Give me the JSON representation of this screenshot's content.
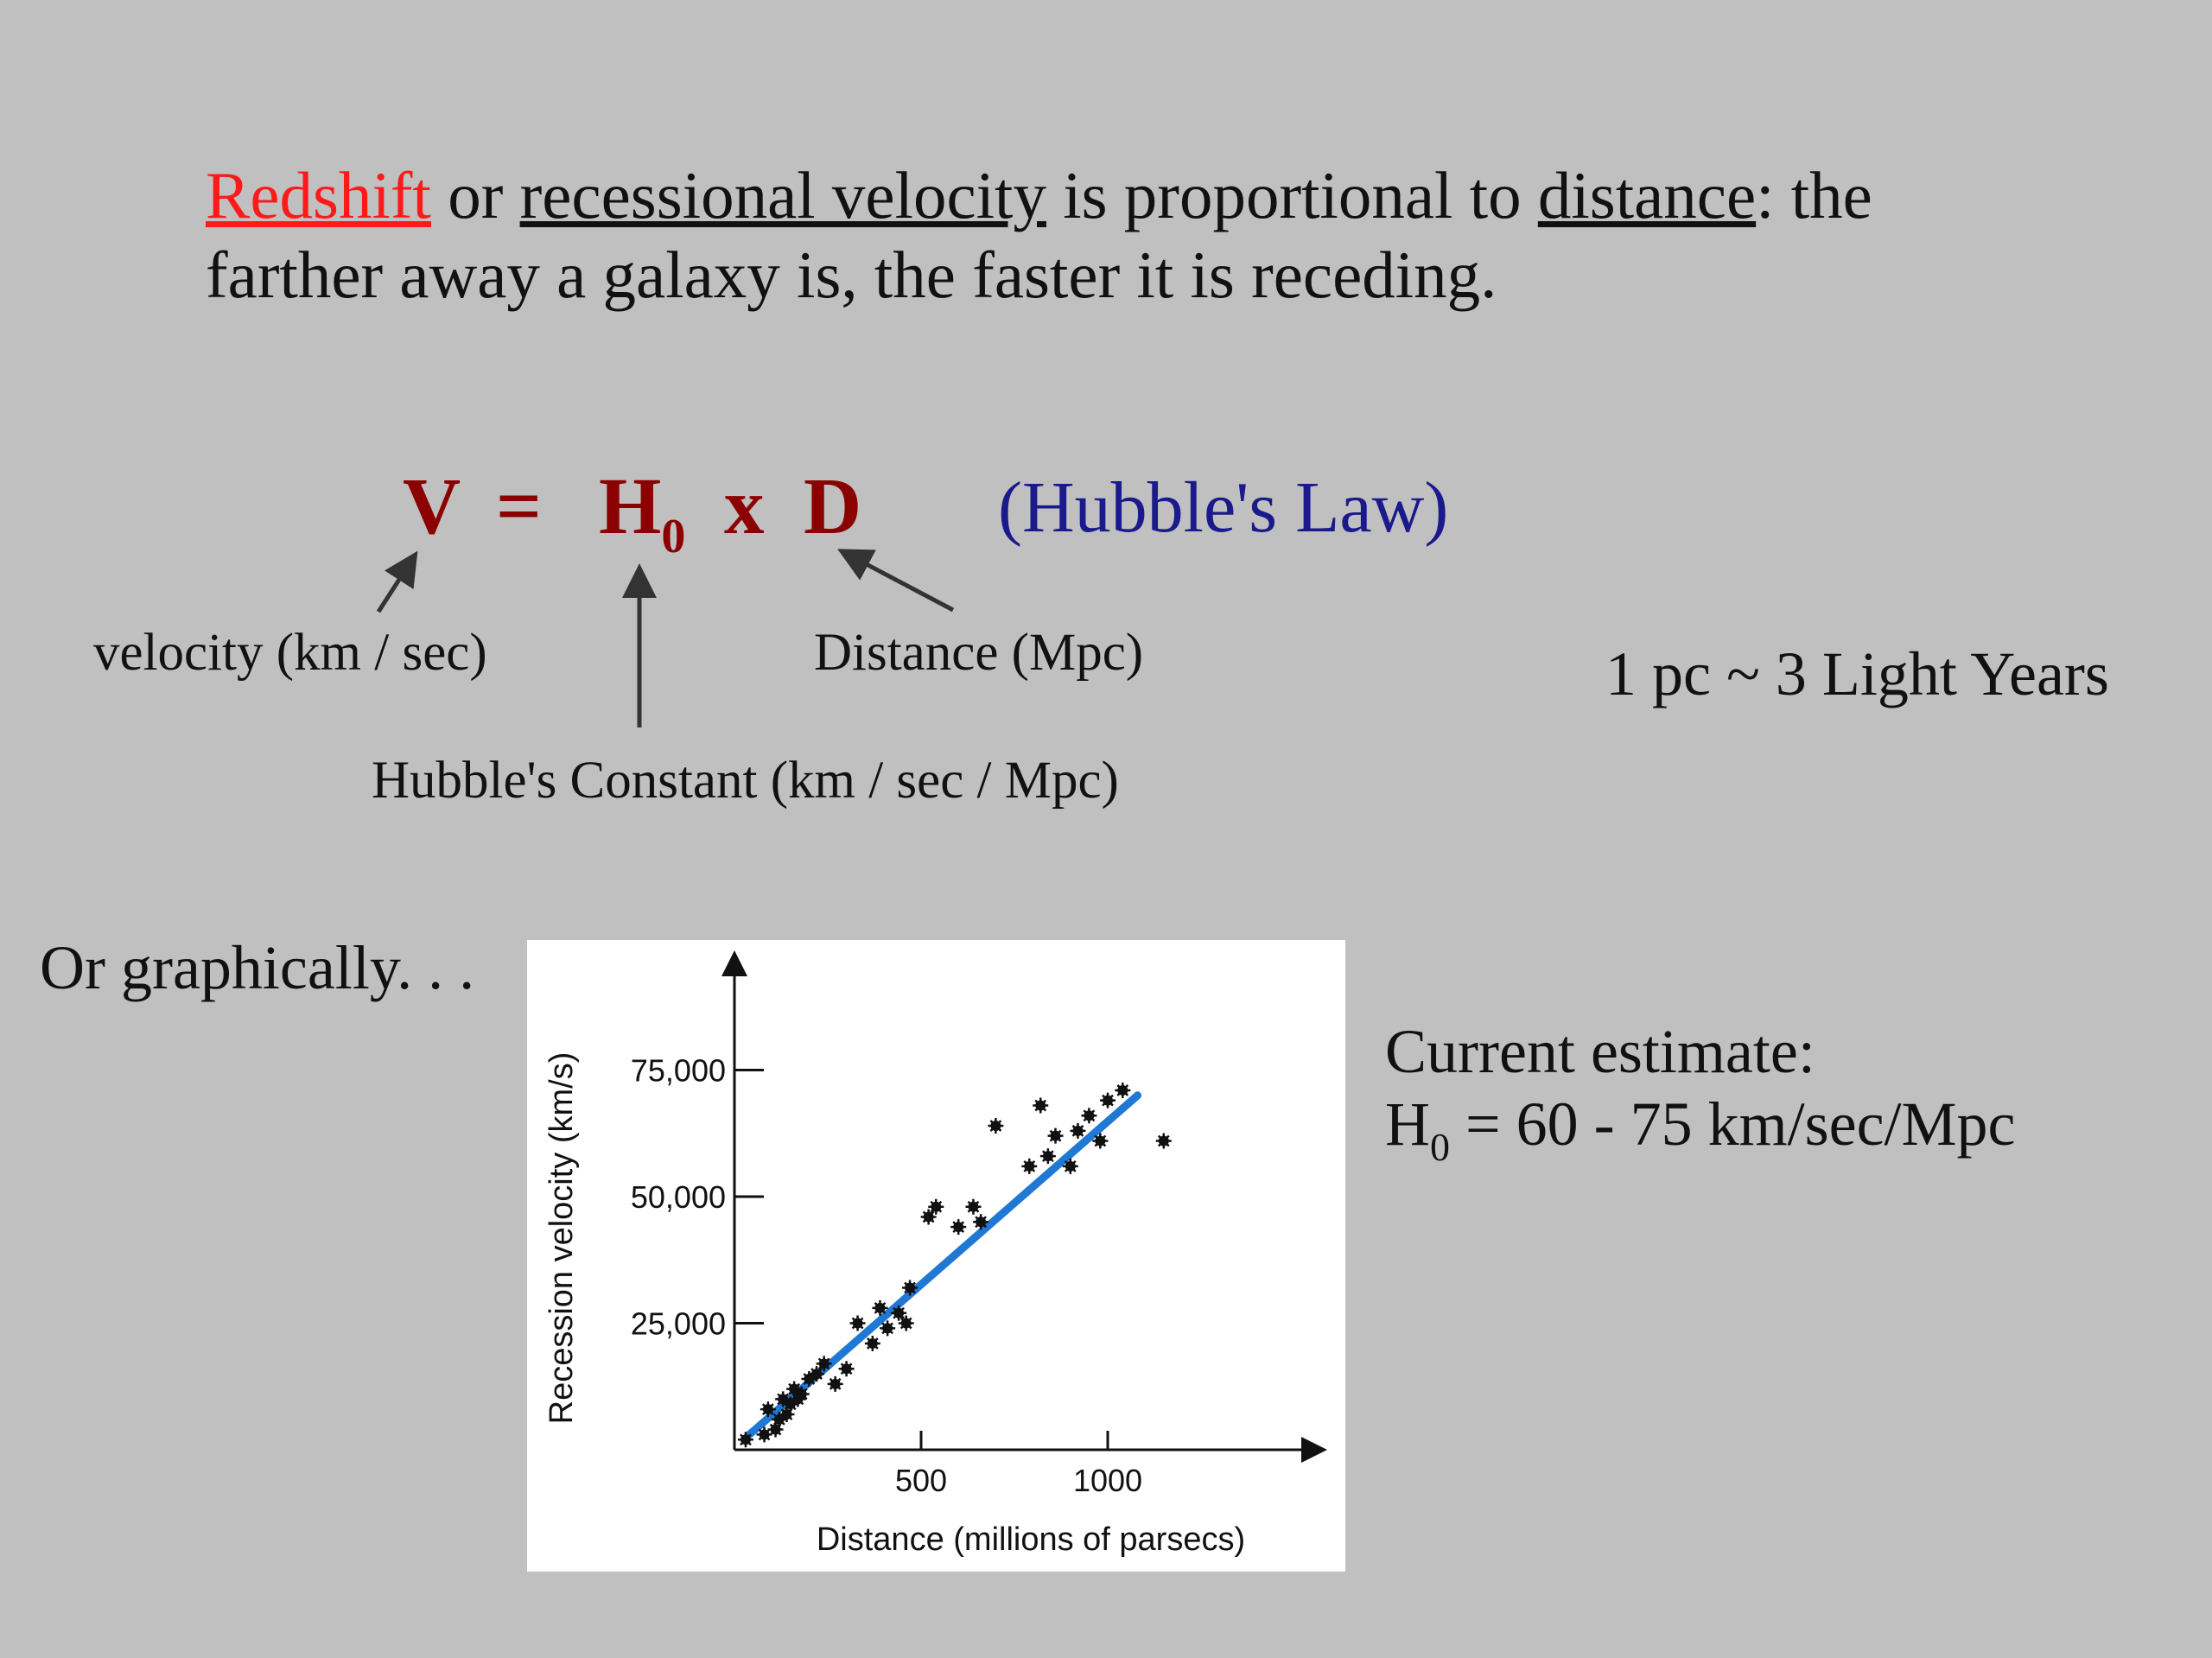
{
  "intro": {
    "redshift": "Redshift",
    "or": " or ",
    "recessional_velocity": "recessional velocity",
    "proportional": " is proportional to ",
    "distance": "distance",
    "tail": ":  the",
    "line2": "farther away a galaxy is, the faster it is receding."
  },
  "equation": {
    "v": "V",
    "equals": "=",
    "h": "H",
    "h_sub": "0",
    "x": "x",
    "d": "D",
    "law": "(Hubble's Law)"
  },
  "labels": {
    "velocity": "velocity (km / sec)",
    "distance": "Distance (Mpc)",
    "constant": "Hubble's Constant (km / sec / Mpc)",
    "parsec": "1 pc ~ 3 Light Years"
  },
  "graphically": "Or graphically. . .",
  "estimate": {
    "line1": "Current estimate:",
    "h": "H",
    "h_sub": "0",
    "value": " = 60 - 75 km/sec/Mpc"
  },
  "colors": {
    "background": "#c0c0c0",
    "redshift": "#ff1a1a",
    "equation": "#8b0000",
    "law": "#1a1a8c",
    "fit_line": "#1f78d4",
    "points": "#111111"
  },
  "chart_data": {
    "type": "scatter",
    "title": "",
    "xlabel": "Distance (millions of parsecs)",
    "ylabel": "Recession velocity (km/s)",
    "xlim": [
      0,
      1550
    ],
    "ylim": [
      0,
      100000
    ],
    "x_ticks": [
      500,
      1000
    ],
    "x_tick_labels": [
      "500",
      "1000"
    ],
    "y_ticks": [
      25000,
      50000,
      75000
    ],
    "y_tick_labels": [
      "25,000",
      "50,000",
      "75,000"
    ],
    "fit_line": {
      "x": [
        40,
        1080
      ],
      "y": [
        3000,
        70000
      ]
    },
    "points": [
      [
        30,
        2000
      ],
      [
        80,
        3000
      ],
      [
        90,
        8000
      ],
      [
        110,
        4000
      ],
      [
        120,
        6000
      ],
      [
        130,
        10000
      ],
      [
        140,
        7000
      ],
      [
        150,
        9000
      ],
      [
        160,
        12000
      ],
      [
        170,
        10000
      ],
      [
        180,
        11000
      ],
      [
        200,
        14000
      ],
      [
        220,
        15000
      ],
      [
        240,
        17000
      ],
      [
        270,
        13000
      ],
      [
        300,
        16000
      ],
      [
        330,
        25000
      ],
      [
        370,
        21000
      ],
      [
        390,
        28000
      ],
      [
        410,
        24000
      ],
      [
        440,
        27000
      ],
      [
        460,
        25000
      ],
      [
        470,
        32000
      ],
      [
        520,
        46000
      ],
      [
        540,
        48000
      ],
      [
        600,
        44000
      ],
      [
        640,
        48000
      ],
      [
        660,
        45000
      ],
      [
        700,
        64000
      ],
      [
        790,
        56000
      ],
      [
        820,
        68000
      ],
      [
        840,
        58000
      ],
      [
        860,
        62000
      ],
      [
        900,
        56000
      ],
      [
        920,
        63000
      ],
      [
        950,
        66000
      ],
      [
        980,
        61000
      ],
      [
        1000,
        69000
      ],
      [
        1040,
        71000
      ],
      [
        1150,
        61000
      ]
    ],
    "grid": false,
    "legend": "none"
  }
}
